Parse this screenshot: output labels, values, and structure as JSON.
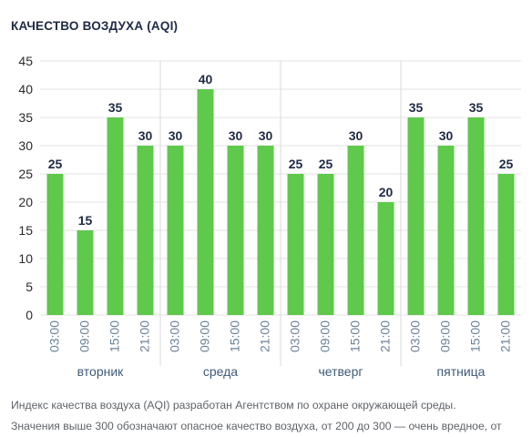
{
  "header": {
    "title": "КАЧЕСТВО ВОЗДУХА (AQI)"
  },
  "colors": {
    "bar": "#5ec94b",
    "grid": "#e3e3e3",
    "separator": "#d9d9d9"
  },
  "chart_data": {
    "type": "bar",
    "title": "КАЧЕСТВО ВОЗДУХА (AQI)",
    "xlabel": "",
    "ylabel": "",
    "ylim": [
      0,
      45
    ],
    "yticks": [
      0,
      5,
      10,
      15,
      20,
      25,
      30,
      35,
      40,
      45
    ],
    "grid": true,
    "groups": [
      "вторник",
      "среда",
      "четверг",
      "пятница"
    ],
    "categories": [
      "03:00",
      "09:00",
      "15:00",
      "21:00",
      "03:00",
      "09:00",
      "15:00",
      "21:00",
      "03:00",
      "09:00",
      "15:00",
      "21:00",
      "03:00",
      "09:00",
      "15:00",
      "21:00"
    ],
    "values": [
      25,
      15,
      35,
      30,
      30,
      40,
      30,
      30,
      25,
      25,
      30,
      20,
      35,
      30,
      35,
      25
    ]
  },
  "footer": {
    "line1": "Индекс качества воздуха (AQI) разработан Агентством по охране окружающей среды.",
    "line2": "Значения выше 300 обозначают опасное качество воздуха, от 200 до 300 — очень вредное, от"
  }
}
